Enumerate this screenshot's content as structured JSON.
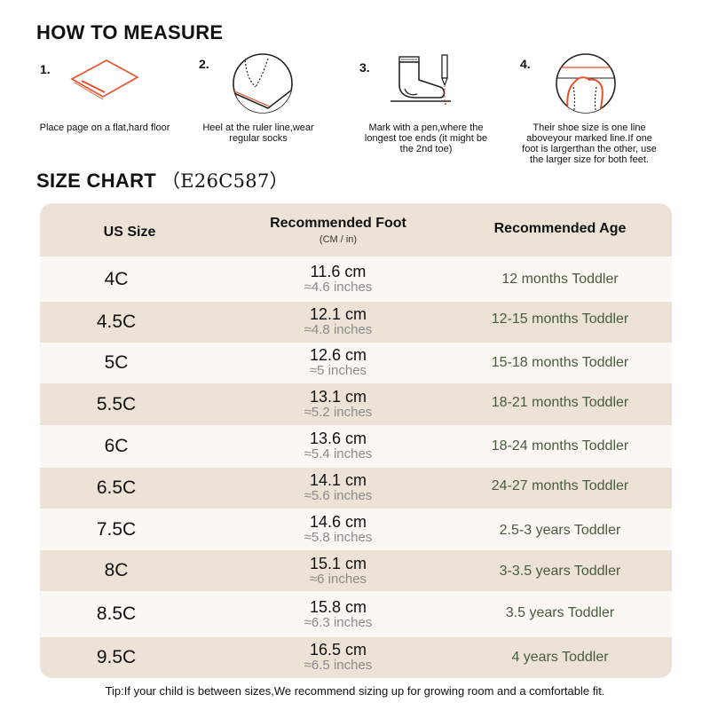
{
  "how_to_measure": {
    "title": "HOW TO MEASURE",
    "steps": [
      {
        "num": "1.",
        "icon": "paper-on-floor-icon",
        "text": "Place page on a flat,hard floor"
      },
      {
        "num": "2.",
        "icon": "heel-at-ruler-icon",
        "text": "Heel at the ruler line,wear regular socks"
      },
      {
        "num": "3.",
        "icon": "sock-foot-pen-icon",
        "text": "Mark with a pen,where the longest toe ends (it might be the 2nd toe)"
      },
      {
        "num": "4.",
        "icon": "toe-over-line-icon",
        "text": "Their shoe size is one line aboveyour marked line.If one foot is largerthan the other, use the larger size for both feet."
      }
    ]
  },
  "size_chart": {
    "title": "SIZE CHART",
    "code": "（E26C587）",
    "headers": {
      "us": "US Size",
      "foot": "Recommended Foot",
      "foot_sub": "(CM / in)",
      "age": "Recommended Age"
    },
    "rows": [
      {
        "us": "4C",
        "cm": "11.6 cm",
        "inch": "≈4.6 inches",
        "age": "12 months Toddler"
      },
      {
        "us": "4.5C",
        "cm": "12.1 cm",
        "inch": "≈4.8 inches",
        "age": "12-15 months Toddler"
      },
      {
        "us": "5C",
        "cm": "12.6 cm",
        "inch": "≈5 inches",
        "age": "15-18 months Toddler"
      },
      {
        "us": "5.5C",
        "cm": "13.1 cm",
        "inch": "≈5.2 inches",
        "age": "18-21 months Toddler"
      },
      {
        "us": "6C",
        "cm": "13.6 cm",
        "inch": "≈5.4 inches",
        "age": "18-24 months Toddler"
      },
      {
        "us": "6.5C",
        "cm": "14.1 cm",
        "inch": "≈5.6 inches",
        "age": "24-27 months Toddler"
      },
      {
        "us": "7.5C",
        "cm": "14.6 cm",
        "inch": "≈5.8 inches",
        "age": "2.5-3 years Toddler"
      },
      {
        "us": "8C",
        "cm": "15.1 cm",
        "inch": "≈6 inches",
        "age": "3-3.5 years Toddler"
      },
      {
        "us": "8.5C",
        "cm": "15.8 cm",
        "inch": "≈6.3 inches",
        "age": "3.5 years Toddler"
      },
      {
        "us": "9.5C",
        "cm": "16.5 cm",
        "inch": "≈6.5 inches",
        "age": "4 years Toddler"
      }
    ]
  },
  "tip": "Tip:If your child is between sizes,We recommend sizing up for growing room and a comfortable fit.",
  "colors": {
    "accent": "#e8502a",
    "row_dark": "#ece3d6",
    "row_light": "#fbf8f3",
    "age_text": "#4a5a40"
  }
}
